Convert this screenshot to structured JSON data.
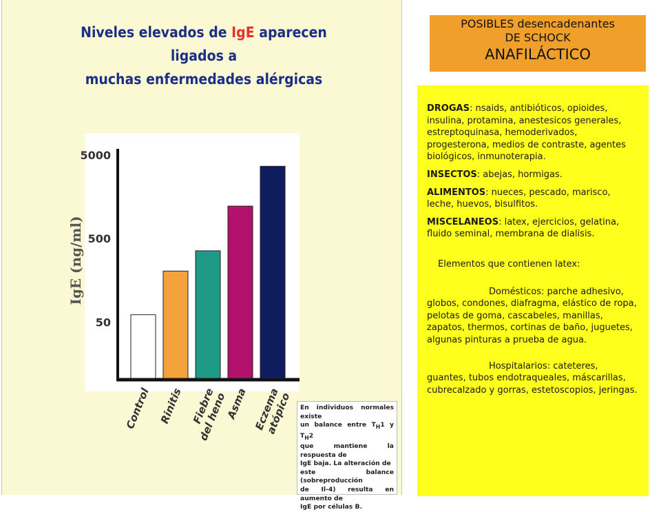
{
  "slide": {
    "title_prefix": "Niveles elevados de ",
    "title_accent": "IgE",
    "title_suffix": " aparecen ligados a",
    "title_line2": "muchas enfermedades alérgicas"
  },
  "colors": {
    "title_text": "#1c2f86",
    "title_accent": "#e4322b",
    "slide_background": "#fbf8d4",
    "title_box": "#f0a02a",
    "info_box": "#ffff1e"
  },
  "chart_data": {
    "type": "bar",
    "title": "",
    "xlabel": "",
    "ylabel": "IgE (ng/ml)",
    "yscale": "log",
    "ylim": [
      10,
      5000
    ],
    "yticks": [
      50,
      500,
      5000
    ],
    "ytick_labels": [
      "50",
      "500",
      "5000"
    ],
    "grid": false,
    "categories": [
      [
        "Control"
      ],
      [
        "Rinitis"
      ],
      [
        "Fiebre",
        "del heno"
      ],
      [
        "Asma"
      ],
      [
        "Eczema",
        "atópico"
      ]
    ],
    "values": [
      60,
      200,
      350,
      1200,
      3600
    ],
    "colors": [
      "#ffffff",
      "#f4a23c",
      "#1e9a87",
      "#b3116b",
      "#0f1d5e"
    ]
  },
  "note": {
    "line1": "En individuos normales existe",
    "line2_a": "un balance entre T",
    "sub_h": "H",
    "line2_b": "1 y T",
    "line2_c": "2",
    "line3": "que mantiene la respuesta de",
    "line4": "IgE baja. La alteración de",
    "line5": "este balance (sobreproducción",
    "line6": "de Il-4) resulta en aumento de",
    "line7": "IgE por células B."
  },
  "header": {
    "line1": "POSIBLES desencadenantes",
    "line2": "DE SCHOCK",
    "line3": "ANAFILÁCTICO"
  },
  "causes": {
    "drogas_label": "DROGAS",
    "drogas_text": ": nsaids, antibióticos, opioides, insulina, protamina, anestesicos generales, estreptoquinasa, hemoderivados, progesterona, medios de contraste, agentes biológicos, inmunoterapia.",
    "insectos_label": "INSECTOS",
    "insectos_text": ": abejas, hormigas.",
    "alimentos_label": "ALIMENTOS",
    "alimentos_text": ": nueces, pescado, marisco, leche, huevos, bisulfitos.",
    "misc_label": "MISCELANEOS",
    "misc_text": ": latex, ejercicios, gelatina, fluido seminal, membrana de dialisis.",
    "latex_heading": "Elementos que contienen latex:",
    "domestic_text": "Domésticos: parche adhesivo, globos, condones, diafragma, elástico de ropa, pelotas de goma, cascabeles, manillas, zapatos, thermos, cortinas de baño, juguetes, algunas pinturas a prueba de agua.",
    "hospital_text": "Hospitalarios: cateteres, guantes, tubos endotraqueales, máscarillas, cubrecalzado y gorras, estetoscopios, jeringas."
  }
}
